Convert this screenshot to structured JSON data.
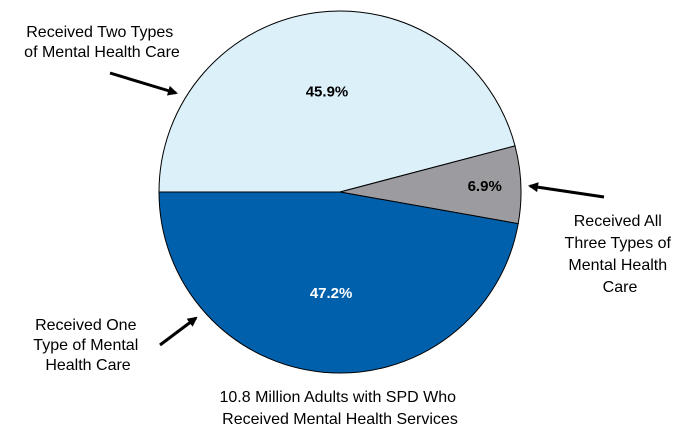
{
  "chart_data": {
    "type": "pie",
    "title": "",
    "caption": [
      "10.8 Million Adults with SPD Who",
      "Received Mental Health Services"
    ],
    "slices": [
      {
        "label": [
          "Received Two Types",
          "of Mental Health Care"
        ],
        "value": 45.9,
        "value_label": "45.9%",
        "color": "#dcf0fa",
        "text_color": "#000000"
      },
      {
        "label": [
          "Received All",
          "Three Types of",
          "Mental Health",
          "Care"
        ],
        "value": 6.9,
        "value_label": "6.9%",
        "color": "#9c9ca0",
        "text_color": "#000000"
      },
      {
        "label": [
          "Received One",
          "Type of Mental",
          "Health Care"
        ],
        "value": 47.2,
        "value_label": "47.2%",
        "color": "#0160ab",
        "text_color": "#ffffff"
      }
    ]
  }
}
